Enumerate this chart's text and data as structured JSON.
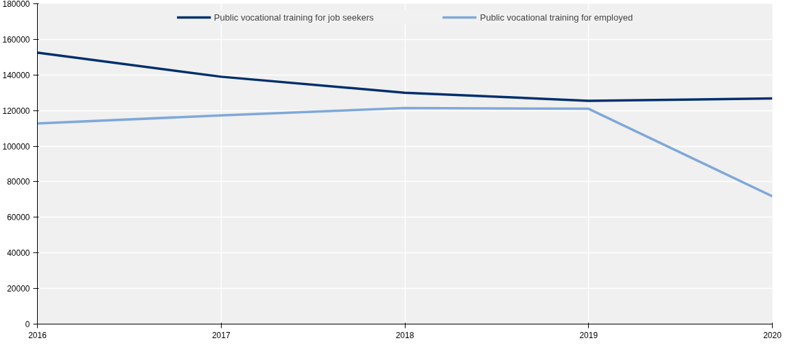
{
  "chart_data": {
    "type": "line",
    "x": [
      2016,
      2017,
      2018,
      2019,
      2020
    ],
    "series": [
      {
        "name": "Public vocational training for job seekers",
        "color": "#002f6c",
        "values": [
          152500,
          139000,
          130000,
          125500,
          126800
        ]
      },
      {
        "name": "Public vocational training for employed",
        "color": "#7fa8d9",
        "values": [
          112700,
          117300,
          121400,
          121000,
          71800
        ]
      }
    ],
    "xlim": [
      2016,
      2020
    ],
    "xticks": [
      2016,
      2017,
      2018,
      2019,
      2020
    ],
    "ylim": [
      0,
      180000
    ],
    "yticks": [
      0,
      20000,
      40000,
      60000,
      80000,
      100000,
      120000,
      140000,
      160000,
      180000
    ],
    "grid": true,
    "legend": "top",
    "marker": "none",
    "line_style": "solid"
  }
}
